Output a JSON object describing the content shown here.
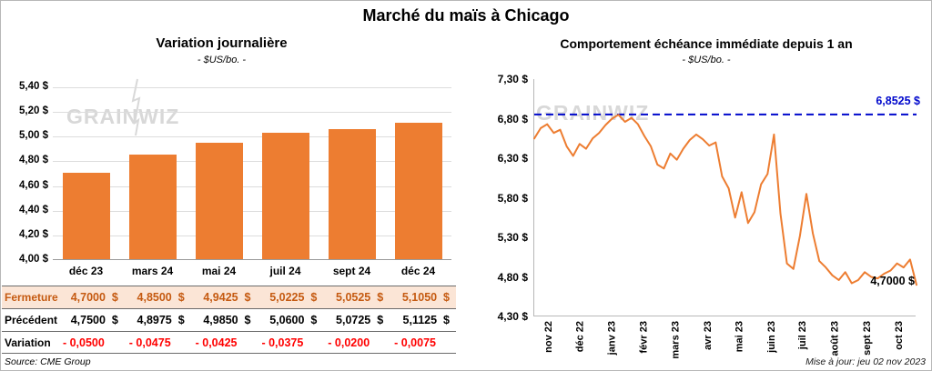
{
  "page_title": "Marché du maïs à Chicago",
  "watermark": "GRAINWIZ",
  "source_note": "Source: CME Group",
  "update_note": "Mise à jour: jeu 02 nov 2023",
  "table": {
    "rows": [
      {
        "label": "Fermeture",
        "style": "close",
        "values": [
          "4,7000  $",
          "4,8500  $",
          "4,9425  $",
          "5,0225  $",
          "5,0525  $",
          "5,1050  $"
        ]
      },
      {
        "label": "Précédent",
        "style": "previous",
        "values": [
          "4,7500  $",
          "4,8975  $",
          "4,9850  $",
          "5,0600  $",
          "5,0725  $",
          "5,1125  $"
        ]
      },
      {
        "label": "Variation",
        "style": "variation",
        "values": [
          "- 0,0500",
          "- 0,0475",
          "- 0,0425",
          "- 0,0375",
          "- 0,0200",
          "- 0,0075"
        ]
      }
    ]
  },
  "chart_data": [
    {
      "type": "bar",
      "title": "Variation journalière",
      "subtitle": "- $US/bo. -",
      "categories": [
        "déc 23",
        "mars 24",
        "mai 24",
        "juil 24",
        "sept 24",
        "déc 24"
      ],
      "values": [
        4.7,
        4.85,
        4.9425,
        5.0225,
        5.0525,
        5.105
      ],
      "ylim": [
        4.0,
        5.4
      ],
      "ytick_step": 0.2,
      "ytick_labels": [
        "4,00 $",
        "4,20 $",
        "4,40 $",
        "4,60 $",
        "4,80 $",
        "5,00 $",
        "5,20 $",
        "5,40 $"
      ],
      "bar_color": "#ED7D31",
      "grid": true,
      "legend_position": "none"
    },
    {
      "type": "line",
      "title": "Comportement échéance immédiate depuis 1 an",
      "subtitle": "- $US/bo. -",
      "x_labels": [
        "nov 22",
        "déc 22",
        "janv 23",
        "févr 23",
        "mars 23",
        "avr 23",
        "mai 23",
        "juin 23",
        "juil 23",
        "août 23",
        "sept 23",
        "oct 23"
      ],
      "values": [
        6.55,
        6.68,
        6.73,
        6.62,
        6.66,
        6.45,
        6.33,
        6.48,
        6.42,
        6.55,
        6.62,
        6.72,
        6.8,
        6.85,
        6.76,
        6.81,
        6.73,
        6.58,
        6.45,
        6.22,
        6.17,
        6.36,
        6.28,
        6.42,
        6.53,
        6.6,
        6.54,
        6.46,
        6.5,
        6.07,
        5.92,
        5.55,
        5.87,
        5.48,
        5.62,
        5.97,
        6.1,
        6.6,
        5.6,
        4.97,
        4.9,
        5.32,
        5.85,
        5.35,
        5.0,
        4.92,
        4.82,
        4.76,
        4.86,
        4.72,
        4.76,
        4.86,
        4.8,
        4.78,
        4.84,
        4.88,
        4.97,
        4.92,
        5.02,
        4.7
      ],
      "ylim": [
        4.3,
        7.3
      ],
      "ytick_step": 0.5,
      "ytick_labels": [
        "4,30 $",
        "4,80 $",
        "5,30 $",
        "5,80 $",
        "6,30 $",
        "6,80 $",
        "7,30 $"
      ],
      "line_color": "#ED7D31",
      "reference_line": {
        "value": 6.8525,
        "label": "6,8525 $",
        "color": "#0008cc",
        "style": "dashed"
      },
      "end_label": {
        "value": 4.7,
        "text": "4,7000 $",
        "color": "#000000"
      },
      "grid": false,
      "legend_position": "none"
    }
  ]
}
